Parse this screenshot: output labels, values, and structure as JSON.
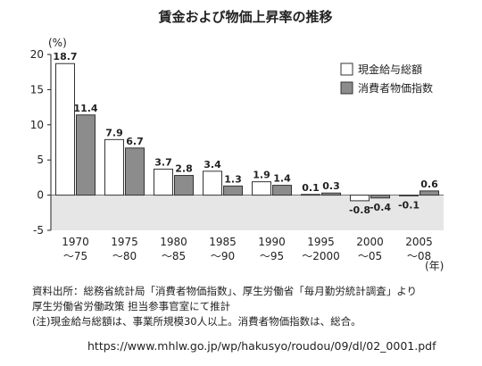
{
  "chart_data": {
    "type": "bar",
    "title": "賃金および物価上昇率の推移",
    "ylabel": "(%)",
    "xlabel": "(年)",
    "ylim": [
      -5,
      20
    ],
    "yticks": [
      "20",
      "15",
      "10",
      "5",
      "0",
      "-5"
    ],
    "ytick_values": [
      20,
      15,
      10,
      5,
      0,
      -5
    ],
    "categories": [
      [
        "1970",
        "～75"
      ],
      [
        "1975",
        "～80"
      ],
      [
        "1980",
        "～85"
      ],
      [
        "1985",
        "～90"
      ],
      [
        "1990",
        "～95"
      ],
      [
        "1995",
        "～2000"
      ],
      [
        "2000",
        "～05"
      ],
      [
        "2005",
        "～08"
      ]
    ],
    "series": [
      {
        "name": "現金給与総額",
        "color": "#ffffff",
        "values": [
          18.7,
          7.9,
          3.7,
          3.4,
          1.9,
          0.1,
          -0.8,
          -0.1
        ],
        "labels": [
          "18.7",
          "7.9",
          "3.7",
          "3.4",
          "1.9",
          "0.1",
          "-0.8",
          "-0.1"
        ]
      },
      {
        "name": "消費者物価指数",
        "color": "#8c8c8c",
        "values": [
          11.4,
          6.7,
          2.8,
          1.3,
          1.4,
          0.3,
          -0.4,
          0.6
        ],
        "labels": [
          "11.4",
          "6.7",
          "2.8",
          "1.3",
          "1.4",
          "0.3",
          "-0.4",
          "0.6"
        ]
      }
    ],
    "negative_region_color": "#e6e6e6",
    "legend_position": "top-right",
    "grid": false
  },
  "notes": {
    "line1": "資料出所：総務省統計局「消費者物価指数」、厚生労働省「毎月勤労統計調査」より",
    "line2": "厚生労働省労働政策 担当参事官室にて推計",
    "line3": "(注)現金給与総額は、事業所規模30人以上。消費者物価指数は、総合。"
  },
  "url": "https://www.mhlw.go.jp/wp/hakusyo/roudou/09/dl/02_0001.pdf"
}
